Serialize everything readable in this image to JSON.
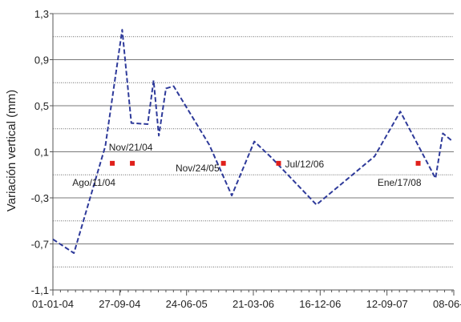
{
  "chart_data": {
    "type": "line",
    "ylabel": "Variación vertical (mm)",
    "xlabel": "",
    "ylim": [
      -1.1,
      1.3
    ],
    "xlim": [
      "2004-01-01",
      "2008-06-08"
    ],
    "y_ticks": [
      -1.1,
      -0.7,
      -0.3,
      0.1,
      0.5,
      0.9,
      1.3
    ],
    "y_tick_labels": [
      "-1,1",
      "-0,7",
      "-0,3",
      "0,1",
      "0,5",
      "0,9",
      "1,3"
    ],
    "y_minor_gridlines": [
      1.1,
      0.7,
      0.3,
      -0.1,
      -0.5,
      -0.9
    ],
    "x_ticks": [
      "2004-01-01",
      "2004-09-27",
      "2005-06-24",
      "2006-03-21",
      "2006-12-16",
      "2007-09-12",
      "2008-06-08"
    ],
    "x_tick_labels": [
      "01-01-04",
      "27-09-04",
      "24-06-05",
      "21-03-06",
      "16-12-06",
      "12-09-07",
      "08-06-08"
    ],
    "grid": "horizontal",
    "series": [
      {
        "color": "#2e3a9a",
        "style": "dashed",
        "points": [
          {
            "x": "2004-01-01",
            "y": -0.66
          },
          {
            "x": "2004-03-26",
            "y": -0.78
          },
          {
            "x": "2004-07-31",
            "y": 0.15
          },
          {
            "x": "2004-10-07",
            "y": 1.16
          },
          {
            "x": "2004-11-13",
            "y": 0.35
          },
          {
            "x": "2005-01-18",
            "y": 0.34
          },
          {
            "x": "2005-02-11",
            "y": 0.72
          },
          {
            "x": "2005-03-04",
            "y": 0.24
          },
          {
            "x": "2005-04-02",
            "y": 0.65
          },
          {
            "x": "2005-05-03",
            "y": 0.67
          },
          {
            "x": "2005-09-24",
            "y": 0.16
          },
          {
            "x": "2005-12-24",
            "y": -0.28
          },
          {
            "x": "2006-03-25",
            "y": 0.19
          },
          {
            "x": "2006-06-02",
            "y": 0.05
          },
          {
            "x": "2006-12-01",
            "y": -0.36
          },
          {
            "x": "2007-07-24",
            "y": 0.06
          },
          {
            "x": "2007-11-05",
            "y": 0.45
          },
          {
            "x": "2008-03-26",
            "y": -0.13
          },
          {
            "x": "2008-04-25",
            "y": 0.26
          },
          {
            "x": "2008-05-29",
            "y": 0.2
          }
        ]
      }
    ],
    "annotations": [
      {
        "x": "2004-08-28",
        "y": 0.0,
        "label": "Ago/11/04",
        "label_side": "below-left"
      },
      {
        "x": "2004-11-17",
        "y": 0.0,
        "label": "Nov/21/04",
        "label_side": "above-left"
      },
      {
        "x": "2005-11-20",
        "y": 0.0,
        "label": "Nov/24/05",
        "label_side": "left"
      },
      {
        "x": "2006-07-01",
        "y": 0.0,
        "label": "Jul/12/06",
        "label_side": "right"
      },
      {
        "x": "2008-01-16",
        "y": 0.0,
        "label": "Ene/17/08",
        "label_side": "below-left"
      }
    ],
    "marker_color": "#e0201b"
  }
}
